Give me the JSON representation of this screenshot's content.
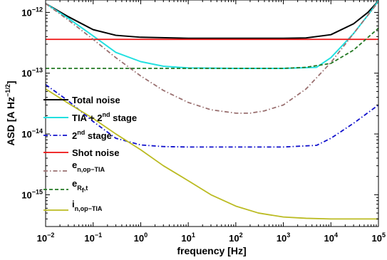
{
  "chart_data": {
    "type": "line",
    "x_scale": "log",
    "y_scale": "log",
    "xlabel": "frequency [Hz]",
    "ylabel": "ASD [A Hz",
    "ylabel_exponent": "−1/2",
    "ylabel_suffix": "]",
    "xlim": [
      0.01,
      100000
    ],
    "ylim": [
      3e-16,
      1.6e-12
    ],
    "x_ticks": [
      {
        "value": 0.01,
        "base": "10",
        "exp": "−2"
      },
      {
        "value": 0.1,
        "base": "10",
        "exp": "−1"
      },
      {
        "value": 1,
        "base": "10",
        "exp": "0"
      },
      {
        "value": 10,
        "base": "10",
        "exp": "1"
      },
      {
        "value": 100,
        "base": "10",
        "exp": "2"
      },
      {
        "value": 1000,
        "base": "10",
        "exp": "3"
      },
      {
        "value": 10000,
        "base": "10",
        "exp": "4"
      },
      {
        "value": 100000,
        "base": "10",
        "exp": "5"
      }
    ],
    "y_ticks": [
      {
        "value": 1e-15,
        "base": "10",
        "exp": "−15"
      },
      {
        "value": 1e-14,
        "base": "10",
        "exp": "−14"
      },
      {
        "value": 1e-13,
        "base": "10",
        "exp": "−13"
      },
      {
        "value": 1e-12,
        "base": "10",
        "exp": "−12"
      }
    ],
    "grid": false,
    "legend_placement": "left",
    "series": [
      {
        "name": "Total noise",
        "color": "#000000",
        "dash": "solid",
        "width": 2,
        "x": [
          0.01,
          0.03,
          0.1,
          0.3,
          1,
          10,
          100,
          1000,
          3000,
          10000,
          30000,
          60000,
          100000
        ],
        "y": [
          1.4e-12,
          8.5e-13,
          5.2e-13,
          4.2e-13,
          3.9e-13,
          3.75e-13,
          3.75e-13,
          3.75e-13,
          3.8e-13,
          4.3e-13,
          6.5e-13,
          1e-12,
          1.55e-12
        ]
      },
      {
        "name": "TIA + 2nd stage",
        "color": "#22e0e0",
        "dash": "solid",
        "width": 2,
        "x": [
          0.01,
          0.03,
          0.1,
          0.3,
          1,
          3,
          10,
          100,
          1000,
          5000,
          10000,
          30000,
          60000,
          100000
        ],
        "y": [
          1.4e-12,
          8e-13,
          4.1e-13,
          2.2e-13,
          1.55e-13,
          1.3e-13,
          1.22e-13,
          1.2e-13,
          1.2e-13,
          1.25e-13,
          1.8e-13,
          4.5e-13,
          9e-13,
          1.55e-12
        ]
      },
      {
        "name": "2nd stage",
        "color": "#1111cc",
        "dash": "dashdot",
        "width": 1.8,
        "x": [
          0.01,
          0.03,
          0.1,
          0.3,
          1,
          3,
          10,
          100,
          1000,
          5000,
          10000,
          30000,
          100000
        ],
        "y": [
          6.5e-14,
          3.5e-14,
          1.6e-14,
          8.5e-15,
          6.6e-15,
          6.2e-15,
          6.1e-15,
          6.1e-15,
          6.1e-15,
          6.5e-15,
          8.5e-15,
          1.5e-14,
          3e-14
        ]
      },
      {
        "name": "Shot noise",
        "color": "#ee1111",
        "dash": "solid",
        "width": 1.8,
        "x": [
          0.01,
          100000
        ],
        "y": [
          3.6e-13,
          3.6e-13
        ]
      },
      {
        "name": "e_{n,op-TIA}",
        "color": "#9a7070",
        "dash": "dashdot",
        "width": 1.8,
        "x": [
          0.01,
          0.03,
          0.1,
          0.3,
          1,
          3,
          10,
          30,
          100,
          200,
          400,
          1000,
          3000,
          10000,
          30000,
          100000
        ],
        "y": [
          1.4e-12,
          7.5e-13,
          3.6e-13,
          1.8e-13,
          9e-14,
          5.2e-14,
          3.3e-14,
          2.5e-14,
          2.2e-14,
          2.2e-14,
          2.4e-14,
          3e-14,
          5.5e-14,
          1.5e-13,
          4.5e-13,
          1.5e-12
        ]
      },
      {
        "name": "e_{R_f,t}",
        "color": "#227722",
        "dash": "dashed",
        "width": 1.8,
        "x": [
          0.01,
          1,
          100,
          1000,
          3000,
          10000,
          30000,
          100000
        ],
        "y": [
          1.2e-13,
          1.2e-13,
          1.2e-13,
          1.2e-13,
          1.25e-13,
          1.45e-13,
          2.4e-13,
          5.5e-13
        ]
      },
      {
        "name": "i_{n,op-TIA}",
        "color": "#bbbb22",
        "dash": "solid",
        "width": 1.8,
        "x": [
          0.01,
          0.03,
          0.1,
          0.3,
          1,
          3,
          10,
          30,
          100,
          300,
          1000,
          3000,
          10000,
          30000,
          100000
        ],
        "y": [
          5.5e-14,
          3.2e-14,
          1.8e-14,
          1e-14,
          5.5e-15,
          3e-15,
          1.7e-15,
          1e-15,
          6.5e-16,
          5e-16,
          4.3e-16,
          4.1e-16,
          4e-16,
          4e-16,
          4e-16
        ]
      }
    ],
    "legend": [
      {
        "main": "Total noise",
        "sub": "",
        "sup": "",
        "tail": ""
      },
      {
        "main": "TIA + 2",
        "sub": "",
        "sup": "nd",
        "tail": " stage"
      },
      {
        "main": "2",
        "sub": "",
        "sup": "nd",
        "tail": " stage"
      },
      {
        "main": "Shot noise",
        "sub": "",
        "sup": "",
        "tail": ""
      },
      {
        "main": "e",
        "sub": "n,op−TIA",
        "sup": "",
        "tail": ""
      },
      {
        "main": "e",
        "sub": "R",
        "subsub": "f",
        "sub2": ",t",
        "sup": "",
        "tail": ""
      },
      {
        "main": "i",
        "sub": "n,op−TIA",
        "sup": "",
        "tail": ""
      }
    ]
  }
}
